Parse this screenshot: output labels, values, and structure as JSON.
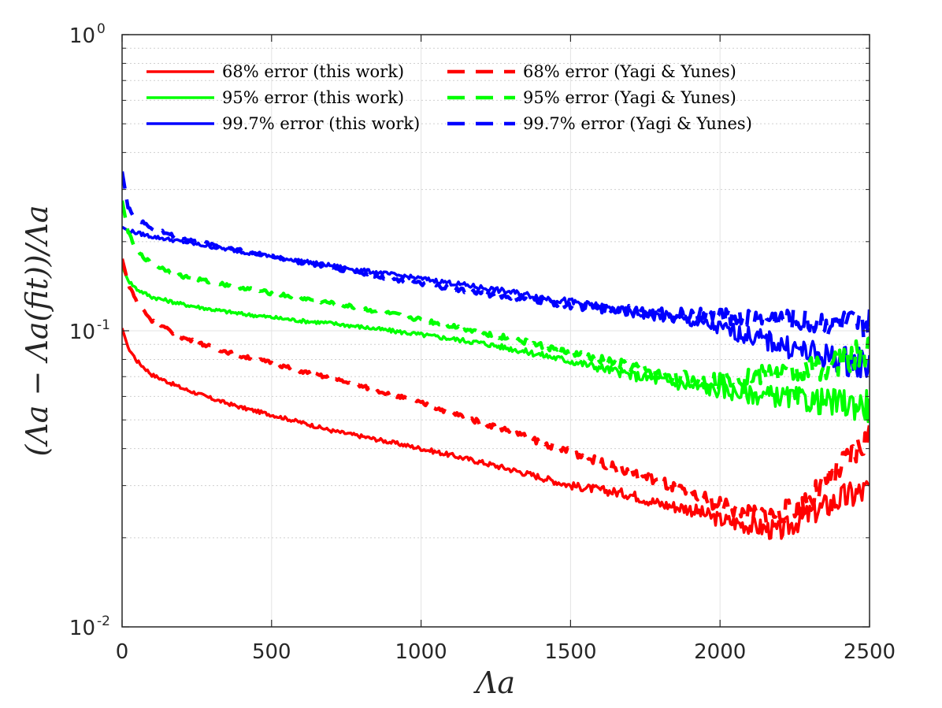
{
  "chart_data": {
    "type": "line",
    "title": "",
    "xlabel": "Λa",
    "ylabel": "(Λa − Λa(fit))/Λa",
    "xlim": [
      0,
      2500
    ],
    "ylim": [
      0.01,
      1
    ],
    "yscale": "log",
    "grid": true,
    "legend_position": "top-left",
    "x_ticks": [
      "0",
      "500",
      "1000",
      "1500",
      "2000",
      "2500"
    ],
    "y_ticks": [
      {
        "base": "10",
        "exp": "-2"
      },
      {
        "base": "10",
        "exp": "-1"
      },
      {
        "base": "10",
        "exp": "0"
      }
    ],
    "series": [
      {
        "name": "68% error (this work)",
        "color": "#ff0000",
        "style": "solid",
        "points": [
          [
            0,
            0.102
          ],
          [
            20,
            0.088
          ],
          [
            50,
            0.079
          ],
          [
            100,
            0.071
          ],
          [
            200,
            0.064
          ],
          [
            300,
            0.059
          ],
          [
            400,
            0.055
          ],
          [
            500,
            0.052
          ],
          [
            600,
            0.049
          ],
          [
            700,
            0.046
          ],
          [
            800,
            0.044
          ],
          [
            900,
            0.042
          ],
          [
            1000,
            0.04
          ],
          [
            1100,
            0.038
          ],
          [
            1200,
            0.036
          ],
          [
            1300,
            0.034
          ],
          [
            1400,
            0.032
          ],
          [
            1500,
            0.03
          ],
          [
            1600,
            0.029
          ],
          [
            1700,
            0.028
          ],
          [
            1800,
            0.026
          ],
          [
            1900,
            0.025
          ],
          [
            2000,
            0.023
          ],
          [
            2100,
            0.022
          ],
          [
            2200,
            0.021
          ],
          [
            2300,
            0.024
          ],
          [
            2400,
            0.027
          ],
          [
            2500,
            0.029
          ]
        ]
      },
      {
        "name": "95% error (this work)",
        "color": "#00ff00",
        "style": "solid",
        "points": [
          [
            0,
            0.165
          ],
          [
            20,
            0.148
          ],
          [
            50,
            0.138
          ],
          [
            100,
            0.13
          ],
          [
            200,
            0.123
          ],
          [
            300,
            0.118
          ],
          [
            400,
            0.114
          ],
          [
            500,
            0.111
          ],
          [
            600,
            0.108
          ],
          [
            700,
            0.106
          ],
          [
            800,
            0.103
          ],
          [
            900,
            0.1
          ],
          [
            1000,
            0.097
          ],
          [
            1100,
            0.094
          ],
          [
            1200,
            0.091
          ],
          [
            1300,
            0.087
          ],
          [
            1400,
            0.083
          ],
          [
            1500,
            0.079
          ],
          [
            1600,
            0.075
          ],
          [
            1700,
            0.071
          ],
          [
            1800,
            0.068
          ],
          [
            1900,
            0.065
          ],
          [
            2000,
            0.063
          ],
          [
            2100,
            0.061
          ],
          [
            2200,
            0.06
          ],
          [
            2300,
            0.058
          ],
          [
            2400,
            0.057
          ],
          [
            2500,
            0.056
          ]
        ]
      },
      {
        "name": "99.7% error (this work)",
        "color": "#0000ff",
        "style": "solid",
        "points": [
          [
            0,
            0.224
          ],
          [
            20,
            0.218
          ],
          [
            50,
            0.214
          ],
          [
            100,
            0.208
          ],
          [
            200,
            0.2
          ],
          [
            300,
            0.192
          ],
          [
            400,
            0.185
          ],
          [
            500,
            0.178
          ],
          [
            600,
            0.172
          ],
          [
            700,
            0.166
          ],
          [
            800,
            0.16
          ],
          [
            900,
            0.155
          ],
          [
            1000,
            0.15
          ],
          [
            1100,
            0.145
          ],
          [
            1200,
            0.14
          ],
          [
            1300,
            0.135
          ],
          [
            1400,
            0.13
          ],
          [
            1500,
            0.125
          ],
          [
            1600,
            0.12
          ],
          [
            1700,
            0.115
          ],
          [
            1800,
            0.112
          ],
          [
            1900,
            0.108
          ],
          [
            2000,
            0.102
          ],
          [
            2100,
            0.096
          ],
          [
            2200,
            0.09
          ],
          [
            2300,
            0.084
          ],
          [
            2400,
            0.08
          ],
          [
            2500,
            0.077
          ]
        ]
      },
      {
        "name": "68% error (Yagi & Yunes)",
        "color": "#ff0000",
        "style": "dashed",
        "points": [
          [
            0,
            0.175
          ],
          [
            20,
            0.145
          ],
          [
            50,
            0.125
          ],
          [
            100,
            0.108
          ],
          [
            200,
            0.095
          ],
          [
            300,
            0.088
          ],
          [
            400,
            0.082
          ],
          [
            500,
            0.078
          ],
          [
            600,
            0.073
          ],
          [
            700,
            0.069
          ],
          [
            800,
            0.065
          ],
          [
            900,
            0.061
          ],
          [
            1000,
            0.057
          ],
          [
            1100,
            0.053
          ],
          [
            1200,
            0.049
          ],
          [
            1300,
            0.046
          ],
          [
            1400,
            0.042
          ],
          [
            1500,
            0.039
          ],
          [
            1600,
            0.036
          ],
          [
            1700,
            0.033
          ],
          [
            1800,
            0.031
          ],
          [
            1900,
            0.028
          ],
          [
            2000,
            0.026
          ],
          [
            2100,
            0.024
          ],
          [
            2200,
            0.024
          ],
          [
            2300,
            0.027
          ],
          [
            2400,
            0.034
          ],
          [
            2500,
            0.044
          ]
        ]
      },
      {
        "name": "95% error (Yagi & Yunes)",
        "color": "#00ff00",
        "style": "dashed",
        "points": [
          [
            0,
            0.275
          ],
          [
            20,
            0.215
          ],
          [
            50,
            0.185
          ],
          [
            100,
            0.168
          ],
          [
            200,
            0.153
          ],
          [
            300,
            0.146
          ],
          [
            400,
            0.14
          ],
          [
            500,
            0.134
          ],
          [
            600,
            0.129
          ],
          [
            700,
            0.124
          ],
          [
            800,
            0.119
          ],
          [
            900,
            0.114
          ],
          [
            1000,
            0.109
          ],
          [
            1100,
            0.104
          ],
          [
            1200,
            0.099
          ],
          [
            1300,
            0.094
          ],
          [
            1400,
            0.089
          ],
          [
            1500,
            0.084
          ],
          [
            1600,
            0.08
          ],
          [
            1700,
            0.076
          ],
          [
            1800,
            0.072
          ],
          [
            1900,
            0.069
          ],
          [
            2000,
            0.068
          ],
          [
            2100,
            0.07
          ],
          [
            2200,
            0.072
          ],
          [
            2300,
            0.074
          ],
          [
            2400,
            0.078
          ],
          [
            2500,
            0.085
          ]
        ]
      },
      {
        "name": "99.7% error (Yagi & Yunes)",
        "color": "#0000ff",
        "style": "dashed",
        "points": [
          [
            0,
            0.345
          ],
          [
            20,
            0.26
          ],
          [
            50,
            0.238
          ],
          [
            100,
            0.222
          ],
          [
            200,
            0.205
          ],
          [
            300,
            0.196
          ],
          [
            400,
            0.187
          ],
          [
            500,
            0.178
          ],
          [
            600,
            0.17
          ],
          [
            700,
            0.163
          ],
          [
            800,
            0.157
          ],
          [
            900,
            0.15
          ],
          [
            1000,
            0.144
          ],
          [
            1100,
            0.139
          ],
          [
            1200,
            0.134
          ],
          [
            1300,
            0.13
          ],
          [
            1400,
            0.126
          ],
          [
            1500,
            0.122
          ],
          [
            1600,
            0.119
          ],
          [
            1700,
            0.117
          ],
          [
            1800,
            0.115
          ],
          [
            1900,
            0.113
          ],
          [
            2000,
            0.112
          ],
          [
            2100,
            0.111
          ],
          [
            2200,
            0.11
          ],
          [
            2300,
            0.108
          ],
          [
            2400,
            0.106
          ],
          [
            2500,
            0.104
          ]
        ]
      }
    ]
  }
}
